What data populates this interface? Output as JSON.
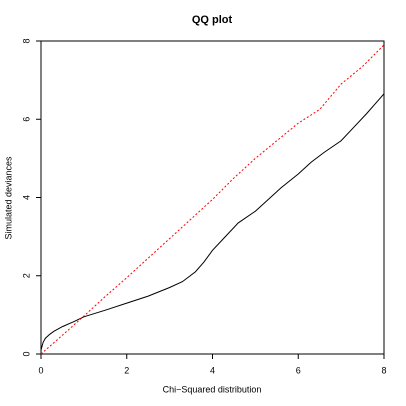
{
  "chart_data": {
    "type": "line",
    "title": "QQ plot",
    "x_label": "Chi−Squared distribution",
    "y_label": "Simulated deviances",
    "xlim": [
      0,
      8
    ],
    "ylim": [
      0,
      8
    ],
    "xticks": [
      0,
      2,
      4,
      6,
      8
    ],
    "yticks": [
      0,
      2,
      4,
      6,
      8
    ],
    "series": [
      {
        "color": "#000000",
        "linestyle": "solid",
        "x": [
          0,
          0.05,
          0.1,
          0.2,
          0.3,
          0.5,
          0.75,
          1,
          1.5,
          2,
          2.5,
          3,
          3.3,
          3.6,
          3.8,
          4,
          4.3,
          4.6,
          5,
          5.3,
          5.6,
          6,
          6.3,
          6.6,
          7,
          7.3,
          7.6,
          7.8,
          8
        ],
        "values": [
          0.1,
          0.3,
          0.4,
          0.5,
          0.58,
          0.7,
          0.82,
          0.95,
          1.12,
          1.3,
          1.48,
          1.7,
          1.85,
          2.1,
          2.35,
          2.65,
          3.0,
          3.35,
          3.65,
          3.95,
          4.25,
          4.6,
          4.9,
          5.15,
          5.45,
          5.8,
          6.15,
          6.4,
          6.65
        ]
      },
      {
        "color": "#ff0000",
        "linestyle": "dotted",
        "x": [
          0,
          0.5,
          1,
          1.5,
          2,
          2.5,
          3,
          3.5,
          4,
          4.5,
          5,
          5.5,
          6,
          6.5,
          7,
          7.5,
          8
        ],
        "values": [
          0,
          0.48,
          0.97,
          1.47,
          1.95,
          2.45,
          2.95,
          3.45,
          3.95,
          4.5,
          5.0,
          5.45,
          5.9,
          6.25,
          6.9,
          7.35,
          7.9
        ]
      }
    ]
  }
}
